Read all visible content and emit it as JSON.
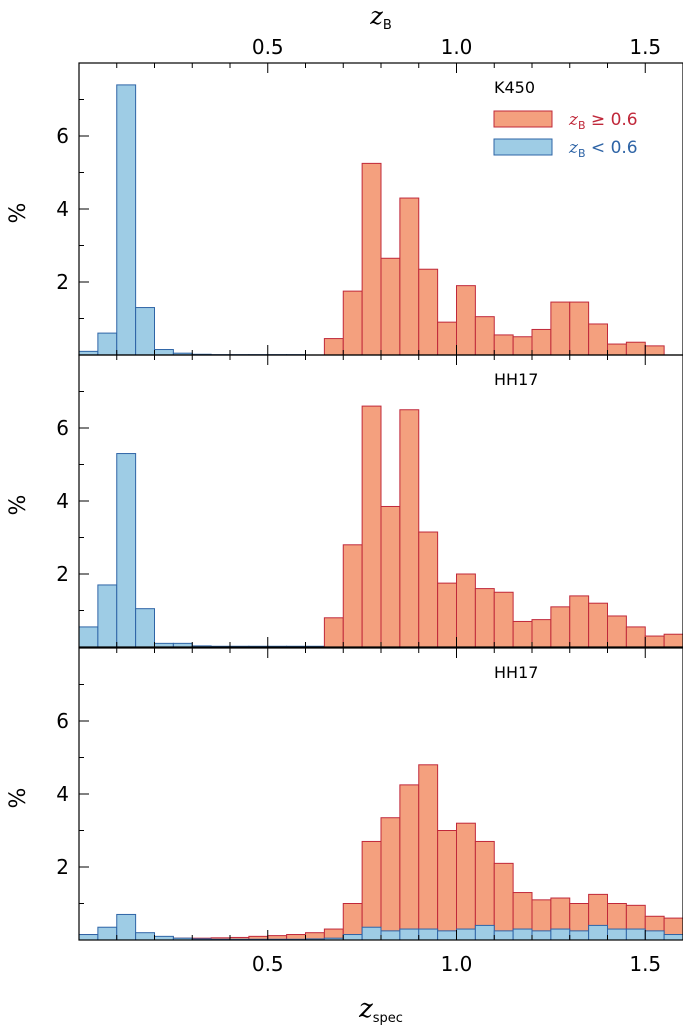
{
  "colors": {
    "red_fill": "#F4A07E",
    "red_edge": "#C0283A",
    "blue_fill": "#9ECCE5",
    "blue_edge": "#2E64A6",
    "axis": "#000000"
  },
  "chart_data": {
    "type": "bar",
    "bin_width": 0.05,
    "xlim": [
      0.0,
      1.6
    ],
    "ylim": [
      0,
      8
    ],
    "yticks": [
      2,
      4,
      6
    ],
    "ytick_labels": [
      "2",
      "4",
      "6"
    ],
    "xticks": [
      0.5,
      1.0,
      1.5
    ],
    "xtick_labels": [
      "0.5",
      "1.0",
      "1.5"
    ],
    "top_axis_label": {
      "main": "z",
      "sub": "B"
    },
    "bottom_axis_label": {
      "main": "z",
      "sub": "spec"
    },
    "ylabel": "%",
    "legend": {
      "placement": "top-right",
      "entries": [
        {
          "main": "z",
          "sub": "B",
          "rest": " ≥ 0.6",
          "color_key": "red"
        },
        {
          "main": "z",
          "sub": "B",
          "rest": " < 0.6",
          "color_key": "blue"
        }
      ]
    },
    "panels": [
      {
        "label": "K450",
        "show_legend": true,
        "series": [
          {
            "color_key": "blue",
            "x_start": 0.0,
            "values": [
              0.1,
              0.6,
              7.4,
              1.3,
              0.15,
              0.05,
              0.02,
              0.01,
              0.01,
              0.01,
              0.01,
              0.01,
              0,
              0
            ]
          },
          {
            "color_key": "red",
            "x_start": 0.65,
            "values": [
              0.45,
              1.75,
              5.25,
              2.65,
              4.3,
              2.35,
              0.9,
              1.9,
              1.05,
              0.55,
              0.5,
              0.7,
              1.45,
              1.45,
              0.85,
              0.3,
              0.35,
              0.25
            ]
          }
        ]
      },
      {
        "label": "HH17",
        "show_legend": false,
        "series": [
          {
            "color_key": "blue",
            "x_start": 0.0,
            "values": [
              0.55,
              1.7,
              5.3,
              1.05,
              0.1,
              0.1,
              0.03,
              0.02,
              0.02,
              0.02,
              0.02,
              0.02,
              0.02,
              0
            ]
          },
          {
            "color_key": "red",
            "x_start": 0.65,
            "values": [
              0.8,
              2.8,
              6.6,
              3.85,
              6.5,
              3.15,
              1.75,
              2.0,
              1.6,
              1.5,
              0.7,
              0.75,
              1.1,
              1.4,
              1.2,
              0.85,
              0.55,
              0.3,
              0.35
            ]
          }
        ]
      },
      {
        "label": "HH17",
        "show_legend": false,
        "series": [
          {
            "color_key": "red",
            "x_start": 0.0,
            "values": [
              0.15,
              0.15,
              0.15,
              0.1,
              0.08,
              0.05,
              0.05,
              0.06,
              0.07,
              0.1,
              0.12,
              0.15,
              0.2,
              0.3,
              1.0,
              2.7,
              3.35,
              4.25,
              4.8,
              3.0,
              3.2,
              2.7,
              2.1,
              1.3,
              1.1,
              1.15,
              1.0,
              1.25,
              1.0,
              0.95,
              0.65,
              0.6,
              0.6,
              0.2
            ]
          },
          {
            "color_key": "blue",
            "x_start": 0.0,
            "values": [
              0.15,
              0.35,
              0.7,
              0.2,
              0.1,
              0.05,
              0.03,
              0.02,
              0.02,
              0.02,
              0.02,
              0.02,
              0.03,
              0.05,
              0.15,
              0.35,
              0.25,
              0.3,
              0.3,
              0.25,
              0.3,
              0.4,
              0.25,
              0.3,
              0.25,
              0.3,
              0.25,
              0.4,
              0.3,
              0.3,
              0.25,
              0.15,
              0.1,
              0.05
            ]
          }
        ]
      }
    ]
  }
}
